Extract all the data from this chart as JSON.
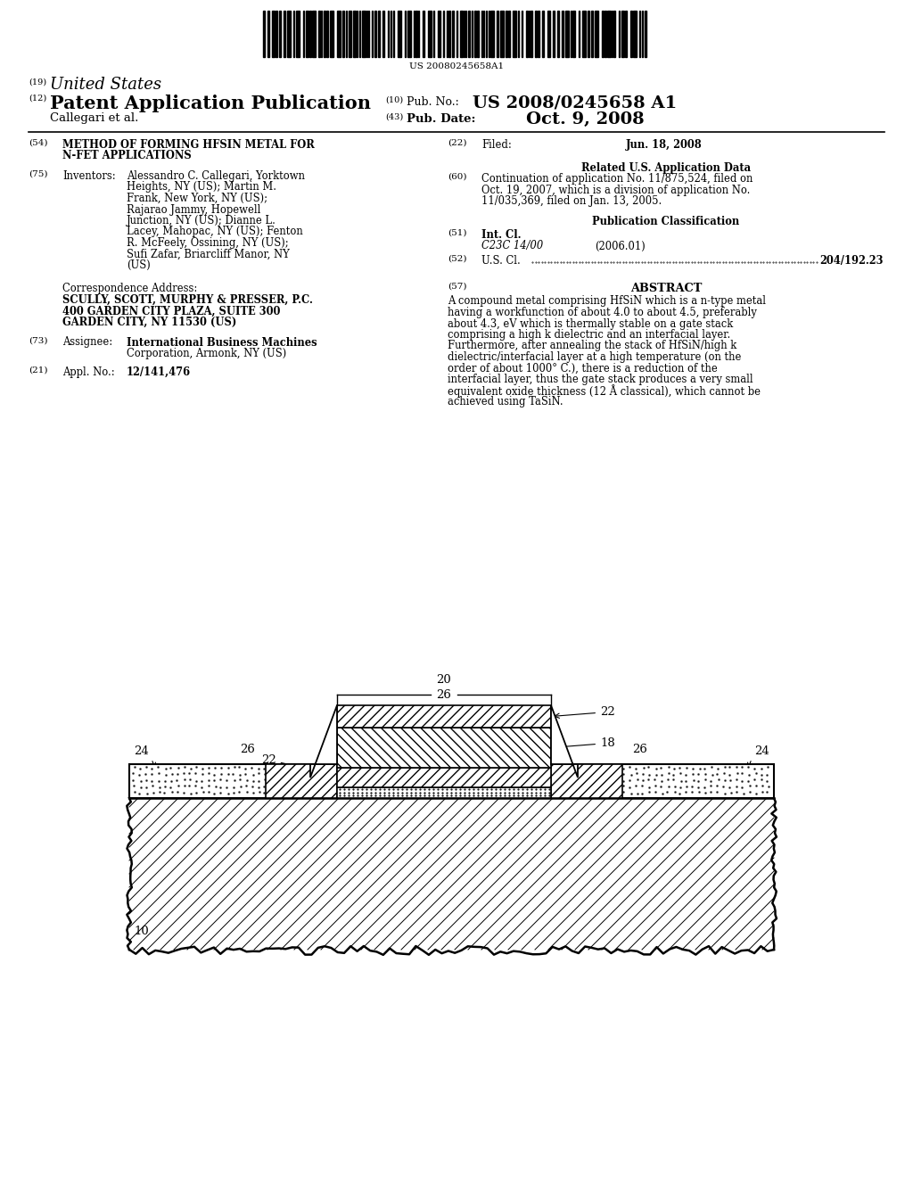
{
  "bg_color": "#ffffff",
  "barcode_text": "US 20080245658A1",
  "pub_number": "US 2008/0245658 A1",
  "pub_date": "Oct. 9, 2008",
  "filed_date": "Jun. 18, 2008",
  "appl_no": "12/141,476",
  "title_line1": "METHOD OF FORMING HFSIN METAL FOR",
  "title_line2": "N-FET APPLICATIONS",
  "inv_line1": "Alessandro C. Callegari, Yorktown",
  "inv_line2": "Heights, NY (US); Martin M.",
  "inv_line3": "Frank, New York, NY (US);",
  "inv_line4": "Rajarao Jammy, Hopewell",
  "inv_line5": "Junction, NY (US); Dianne L.",
  "inv_line6": "Lacey, Mahopac, NY (US); Fenton",
  "inv_line7": "R. McFeely, Ossining, NY (US);",
  "inv_line8": "Sufi Zafar, Briarcliff Manor, NY",
  "inv_line9": "(US)",
  "corr_line0": "Correspondence Address:",
  "corr_line1": "SCULLY, SCOTT, MURPHY & PRESSER, P.C.",
  "corr_line2": "400 GARDEN CITY PLAZA, SUITE 300",
  "corr_line3": "GARDEN CITY, NY 11530 (US)",
  "assignee_line1": "International Business Machines",
  "assignee_line2": "Corporation, Armonk, NY (US)",
  "appl_no_val": "12/141,476",
  "int_cl": "C23C 14/00",
  "int_cl_year": "(2006.01)",
  "us_cl": "204/192.23",
  "rel_app_line1": "Continuation of application No. 11/875,524, filed on",
  "rel_app_line2": "Oct. 19, 2007, which is a division of application No.",
  "rel_app_line3": "11/035,369, filed on Jan. 13, 2005.",
  "abstract_text": "A compound metal comprising HfSiN which is a n-type metal having a workfunction of about 4.0 to about 4.5, preferably about 4.3, eV which is thermally stable on a gate stack comprising a high k dielectric and an interfacial layer. Furthermore, after annealing the stack of HfSiN/high k dielectric/interfacial layer at a high temperature (on the order of about 1000° C.), there is a reduction of the interfacial layer, thus the gate stack produces a very small equivalent oxide thickness (12 Å classical), which cannot be achieved using TaSiN."
}
